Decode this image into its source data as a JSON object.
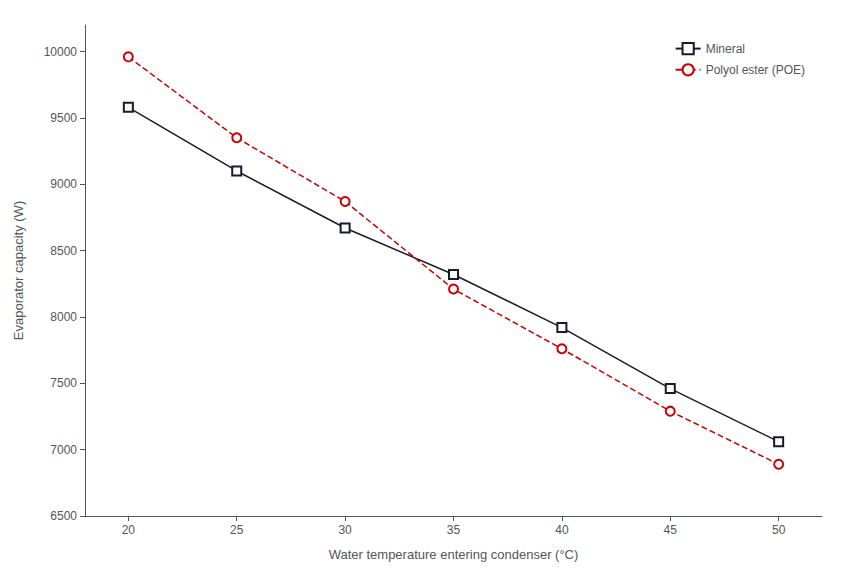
{
  "chart_data": {
    "type": "line",
    "xlabel": "Water temperature entering condenser (°C)",
    "ylabel": "Evaporator capacity (W)",
    "x": [
      20,
      25,
      30,
      35,
      40,
      45,
      50
    ],
    "series": [
      {
        "name": "Mineral",
        "color": "#1a1a2e",
        "values": [
          9580,
          9100,
          8670,
          8320,
          7920,
          7460,
          7060
        ],
        "marker": "square",
        "line_style": "solid"
      },
      {
        "name": "Polyol ester (POE)",
        "color": "#cc0000",
        "values": [
          9960,
          9350,
          8870,
          8210,
          7760,
          7290,
          6890
        ],
        "marker": "circle",
        "line_style": "dashed"
      }
    ],
    "xlim": [
      18,
      52
    ],
    "xticks": [
      20,
      25,
      30,
      35,
      40,
      45,
      50
    ],
    "ylim": [
      6500,
      10200
    ],
    "yticks": [
      6500,
      7000,
      7500,
      8000,
      8500,
      9000,
      9500,
      10000
    ],
    "grid": false,
    "legend": "upper right"
  }
}
